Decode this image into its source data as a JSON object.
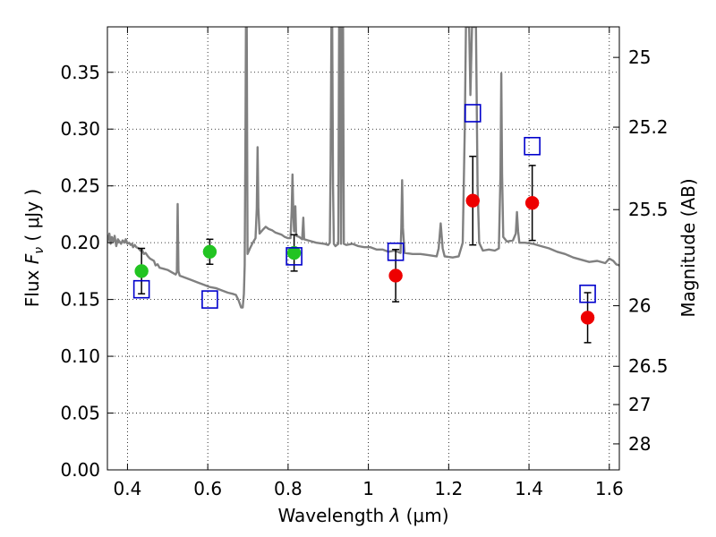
{
  "chart_data": {
    "type": "scatter",
    "title": "",
    "xlabel_prefix": "Wavelength  ",
    "xlabel_symbol": "λ",
    "xlabel_unit": " (μm)",
    "ylabel_prefix": "Flux  ",
    "ylabel_symbol": "F",
    "ylabel_sub": "ν",
    "ylabel_unit": "  ( μJy )",
    "y2label": "Magnitude (AB)",
    "xlim": [
      0.35,
      1.625
    ],
    "ylim": [
      0.0,
      0.39
    ],
    "grid": true,
    "x_ticks": [
      0.4,
      0.6,
      0.8,
      1.0,
      1.2,
      1.4,
      1.6
    ],
    "x_tick_labels": [
      "0.4",
      "0.6",
      "0.8",
      "1",
      "1.2",
      "1.4",
      "1.6"
    ],
    "y_ticks": [
      0.0,
      0.05,
      0.1,
      0.15,
      0.2,
      0.25,
      0.3,
      0.35
    ],
    "y_tick_labels": [
      "0.00",
      "0.05",
      "0.10",
      "0.15",
      "0.20",
      "0.25",
      "0.30",
      "0.35"
    ],
    "y2_ticks": [
      {
        "flux": 0.3631,
        "label": "25"
      },
      {
        "flux": 0.3017,
        "label": "25.2"
      },
      {
        "flux": 0.2291,
        "label": "25.5"
      },
      {
        "flux": 0.1445,
        "label": "26"
      },
      {
        "flux": 0.0912,
        "label": "26.5"
      },
      {
        "flux": 0.0575,
        "label": "27"
      },
      {
        "flux": 0.0229,
        "label": "28"
      }
    ],
    "colors": {
      "spectrum": "#808080",
      "green_points": "#22c422",
      "red_points": "#ee0000",
      "model_boxes": "#0000cc",
      "error_bars": "#000000",
      "grid": "#000000"
    },
    "series": [
      {
        "kind": "line",
        "points": [
          [
            0.35,
            0.2
          ],
          [
            0.355,
            0.208
          ],
          [
            0.358,
            0.199
          ],
          [
            0.361,
            0.205
          ],
          [
            0.365,
            0.201
          ],
          [
            0.368,
            0.206
          ],
          [
            0.372,
            0.197
          ],
          [
            0.376,
            0.203
          ],
          [
            0.38,
            0.201
          ],
          [
            0.384,
            0.199
          ],
          [
            0.388,
            0.202
          ],
          [
            0.392,
            0.2
          ],
          [
            0.396,
            0.203
          ],
          [
            0.4,
            0.199
          ],
          [
            0.404,
            0.2
          ],
          [
            0.408,
            0.198
          ],
          [
            0.411,
            0.199
          ],
          [
            0.414,
            0.196
          ],
          [
            0.418,
            0.198
          ],
          [
            0.422,
            0.196
          ],
          [
            0.428,
            0.195
          ],
          [
            0.432,
            0.193
          ],
          [
            0.436,
            0.194
          ],
          [
            0.441,
            0.19
          ],
          [
            0.445,
            0.191
          ],
          [
            0.451,
            0.188
          ],
          [
            0.456,
            0.186
          ],
          [
            0.461,
            0.185
          ],
          [
            0.466,
            0.184
          ],
          [
            0.47,
            0.18
          ],
          [
            0.475,
            0.181
          ],
          [
            0.48,
            0.178
          ],
          [
            0.49,
            0.177
          ],
          [
            0.5,
            0.176
          ],
          [
            0.51,
            0.174
          ],
          [
            0.52,
            0.172
          ],
          [
            0.523,
            0.174
          ],
          [
            0.525,
            0.234
          ],
          [
            0.527,
            0.175
          ],
          [
            0.53,
            0.171
          ],
          [
            0.545,
            0.169
          ],
          [
            0.56,
            0.167
          ],
          [
            0.575,
            0.165
          ],
          [
            0.59,
            0.163
          ],
          [
            0.605,
            0.161
          ],
          [
            0.62,
            0.16
          ],
          [
            0.635,
            0.158
          ],
          [
            0.65,
            0.156
          ],
          [
            0.662,
            0.155
          ],
          [
            0.67,
            0.154
          ],
          [
            0.677,
            0.149
          ],
          [
            0.683,
            0.143
          ],
          [
            0.687,
            0.143
          ],
          [
            0.69,
            0.155
          ],
          [
            0.692,
            0.18
          ],
          [
            0.694,
            0.3
          ],
          [
            0.695,
            0.39
          ],
          [
            0.697,
            0.39
          ],
          [
            0.699,
            0.19
          ],
          [
            0.705,
            0.195
          ],
          [
            0.712,
            0.2
          ],
          [
            0.719,
            0.204
          ],
          [
            0.722,
            0.23
          ],
          [
            0.724,
            0.284
          ],
          [
            0.726,
            0.23
          ],
          [
            0.729,
            0.208
          ],
          [
            0.736,
            0.211
          ],
          [
            0.744,
            0.214
          ],
          [
            0.752,
            0.212
          ],
          [
            0.76,
            0.211
          ],
          [
            0.768,
            0.209
          ],
          [
            0.776,
            0.208
          ],
          [
            0.784,
            0.207
          ],
          [
            0.792,
            0.205
          ],
          [
            0.8,
            0.204
          ],
          [
            0.806,
            0.204
          ],
          [
            0.809,
            0.228
          ],
          [
            0.811,
            0.26
          ],
          [
            0.813,
            0.228
          ],
          [
            0.815,
            0.21
          ],
          [
            0.818,
            0.232
          ],
          [
            0.82,
            0.206
          ],
          [
            0.828,
            0.205
          ],
          [
            0.835,
            0.203
          ],
          [
            0.838,
            0.222
          ],
          [
            0.84,
            0.203
          ],
          [
            0.85,
            0.202
          ],
          [
            0.87,
            0.2
          ],
          [
            0.89,
            0.199
          ],
          [
            0.9,
            0.198
          ],
          [
            0.904,
            0.2
          ],
          [
            0.906,
            0.27
          ],
          [
            0.908,
            0.39
          ],
          [
            0.91,
            0.39
          ],
          [
            0.912,
            0.25
          ],
          [
            0.914,
            0.199
          ],
          [
            0.918,
            0.197
          ],
          [
            0.925,
            0.199
          ],
          [
            0.927,
            0.39
          ],
          [
            0.93,
            0.39
          ],
          [
            0.932,
            0.199
          ],
          [
            0.935,
            0.39
          ],
          [
            0.937,
            0.39
          ],
          [
            0.939,
            0.199
          ],
          [
            0.945,
            0.198
          ],
          [
            0.96,
            0.199
          ],
          [
            0.975,
            0.197
          ],
          [
            0.99,
            0.196
          ],
          [
            1.005,
            0.196
          ],
          [
            1.02,
            0.194
          ],
          [
            1.035,
            0.194
          ],
          [
            1.05,
            0.192
          ],
          [
            1.065,
            0.193
          ],
          [
            1.08,
            0.191
          ],
          [
            1.082,
            0.213
          ],
          [
            1.084,
            0.255
          ],
          [
            1.086,
            0.213
          ],
          [
            1.09,
            0.191
          ],
          [
            1.11,
            0.19
          ],
          [
            1.13,
            0.19
          ],
          [
            1.15,
            0.189
          ],
          [
            1.17,
            0.188
          ],
          [
            1.175,
            0.195
          ],
          [
            1.18,
            0.217
          ],
          [
            1.185,
            0.195
          ],
          [
            1.19,
            0.188
          ],
          [
            1.21,
            0.187
          ],
          [
            1.225,
            0.188
          ],
          [
            1.235,
            0.2
          ],
          [
            1.24,
            0.3
          ],
          [
            1.243,
            0.39
          ],
          [
            1.251,
            0.39
          ],
          [
            1.254,
            0.33
          ],
          [
            1.258,
            0.39
          ],
          [
            1.268,
            0.39
          ],
          [
            1.272,
            0.25
          ],
          [
            1.276,
            0.2
          ],
          [
            1.285,
            0.193
          ],
          [
            1.3,
            0.194
          ],
          [
            1.315,
            0.193
          ],
          [
            1.325,
            0.195
          ],
          [
            1.329,
            0.26
          ],
          [
            1.331,
            0.349
          ],
          [
            1.333,
            0.26
          ],
          [
            1.336,
            0.205
          ],
          [
            1.345,
            0.201
          ],
          [
            1.36,
            0.202
          ],
          [
            1.367,
            0.208
          ],
          [
            1.37,
            0.227
          ],
          [
            1.373,
            0.21
          ],
          [
            1.376,
            0.2
          ],
          [
            1.39,
            0.2
          ],
          [
            1.41,
            0.199
          ],
          [
            1.43,
            0.197
          ],
          [
            1.45,
            0.195
          ],
          [
            1.47,
            0.192
          ],
          [
            1.49,
            0.19
          ],
          [
            1.51,
            0.187
          ],
          [
            1.53,
            0.185
          ],
          [
            1.55,
            0.183
          ],
          [
            1.57,
            0.184
          ],
          [
            1.59,
            0.182
          ],
          [
            1.6,
            0.186
          ],
          [
            1.61,
            0.184
          ],
          [
            1.617,
            0.181
          ],
          [
            1.625,
            0.18
          ]
        ]
      },
      {
        "kind": "points",
        "points": [
          {
            "x": 0.435,
            "y": 0.175,
            "err": 0.02
          },
          {
            "x": 0.605,
            "y": 0.192,
            "err": 0.011
          },
          {
            "x": 0.815,
            "y": 0.191,
            "err": 0.016
          }
        ]
      },
      {
        "kind": "points",
        "points": [
          {
            "x": 1.068,
            "y": 0.171,
            "err": 0.023
          },
          {
            "x": 1.26,
            "y": 0.237,
            "err": 0.039
          },
          {
            "x": 1.408,
            "y": 0.235,
            "err": 0.033
          },
          {
            "x": 1.546,
            "y": 0.134,
            "err": 0.022
          }
        ]
      },
      {
        "kind": "boxes",
        "points": [
          {
            "x": 0.435,
            "y": 0.159
          },
          {
            "x": 0.605,
            "y": 0.15
          },
          {
            "x": 0.815,
            "y": 0.188
          },
          {
            "x": 1.068,
            "y": 0.192
          },
          {
            "x": 1.26,
            "y": 0.314
          },
          {
            "x": 1.408,
            "y": 0.285
          },
          {
            "x": 1.546,
            "y": 0.155
          }
        ]
      }
    ]
  }
}
